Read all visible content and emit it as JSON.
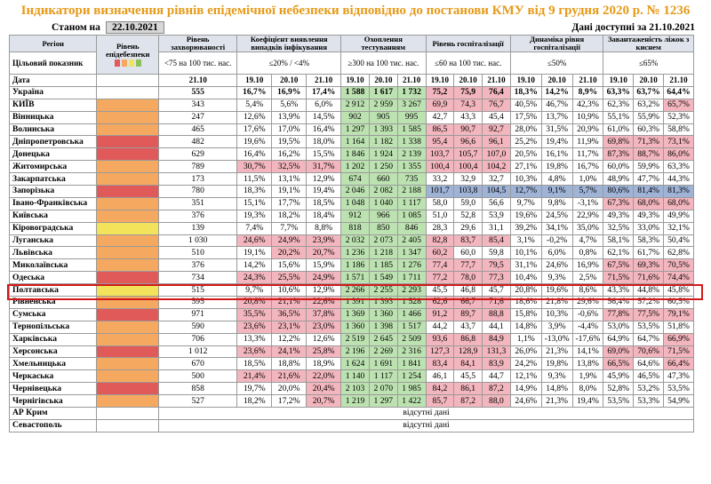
{
  "title": "Індикатори визначення рівнів епідемічної небезпеки відповідно до постанови КМУ від 9 грудня 2020 р. № 1236",
  "as_of_label": "Станом на",
  "as_of_date": "22.10.2021",
  "data_available": "Дані доступні за 21.10.2021",
  "headers": {
    "region": "Регіон",
    "level": "Рівень епідебезпеки",
    "incidence": "Рівень захворюваності",
    "detection": "Коефіцієнт виявлення випадків інфікування",
    "testing": "Охоплення тестуванням",
    "hosp": "Рівень госпіталізації",
    "dynamics": "Динаміка рівня госпіталізації",
    "beds": "Завантаженість ліжок з киснем"
  },
  "thresholds": {
    "target": "Цільовий показник",
    "incidence": "<75 на 100 тис. нас.",
    "detection": "≤20% / <4%",
    "testing": "≥300 на 100 тис. нас.",
    "hosp": "≤60 на 100 тис. нас.",
    "dynamics": "≤50%",
    "beds": "≤65%"
  },
  "dates": {
    "label": "Дата",
    "incidence": "21.10",
    "d1": "19.10",
    "d2": "20.10",
    "d3": "21.10"
  },
  "colors": {
    "red": "#e05a5a",
    "orange": "#f5a960",
    "yellow": "#f2e35a",
    "green": "#8cc05a",
    "pink": "#f3b6be",
    "lightgreen": "#bde2b1",
    "blue": "#9fb3d6",
    "title": "#e69a18",
    "highlight": "#d21a1a"
  },
  "no_data_text": "відсутні дані",
  "rows": [
    {
      "region": "Україна",
      "level": "",
      "inc": "555",
      "det": [
        "16,7%",
        "16,9%",
        "17,4%"
      ],
      "test": [
        "1 588",
        "1 617",
        "1 732"
      ],
      "hosp": [
        "75,2",
        "75,9",
        "76,4"
      ],
      "dyn": [
        "18,3%",
        "14,2%",
        "8,9%"
      ],
      "beds": [
        "63,3%",
        "63,7%",
        "64,4%"
      ]
    },
    {
      "region": "КИЇВ",
      "level": "orange",
      "inc": "343",
      "det": [
        "5,4%",
        "5,6%",
        "6,0%"
      ],
      "test": [
        "2 912",
        "2 959",
        "3 267"
      ],
      "hosp": [
        "69,9",
        "74,3",
        "76,7"
      ],
      "dyn": [
        "40,5%",
        "46,7%",
        "42,3%"
      ],
      "beds": [
        "62,3%",
        "63,2%",
        "65,7%"
      ]
    },
    {
      "region": "Вінницька",
      "level": "orange",
      "inc": "247",
      "det": [
        "12,6%",
        "13,9%",
        "14,5%"
      ],
      "test": [
        "902",
        "905",
        "995"
      ],
      "hosp": [
        "42,7",
        "43,3",
        "45,4"
      ],
      "dyn": [
        "17,5%",
        "13,7%",
        "10,9%"
      ],
      "beds": [
        "55,1%",
        "55,9%",
        "52,3%"
      ]
    },
    {
      "region": "Волинська",
      "level": "orange",
      "inc": "465",
      "det": [
        "17,6%",
        "17,0%",
        "16,4%"
      ],
      "test": [
        "1 297",
        "1 393",
        "1 585"
      ],
      "hosp": [
        "86,5",
        "90,7",
        "92,7"
      ],
      "dyn": [
        "28,0%",
        "31,5%",
        "20,9%"
      ],
      "beds": [
        "61,0%",
        "60,3%",
        "58,8%"
      ]
    },
    {
      "region": "Дніпропетровська",
      "level": "red",
      "inc": "482",
      "det": [
        "19,6%",
        "19,5%",
        "18,0%"
      ],
      "test": [
        "1 164",
        "1 182",
        "1 338"
      ],
      "hosp": [
        "95,4",
        "96,6",
        "96,1"
      ],
      "dyn": [
        "25,2%",
        "19,4%",
        "11,9%"
      ],
      "beds": [
        "69,8%",
        "71,3%",
        "73,1%"
      ]
    },
    {
      "region": "Донецька",
      "level": "red",
      "inc": "629",
      "det": [
        "16,4%",
        "16,2%",
        "15,5%"
      ],
      "test": [
        "1 846",
        "1 924",
        "2 139"
      ],
      "hosp": [
        "103,7",
        "105,7",
        "107,0"
      ],
      "dyn": [
        "20,5%",
        "16,1%",
        "11,7%"
      ],
      "beds": [
        "87,3%",
        "88,7%",
        "86,0%"
      ]
    },
    {
      "region": "Житомирська",
      "level": "orange",
      "inc": "789",
      "det": [
        "30,7%",
        "32,5%",
        "31,7%"
      ],
      "test": [
        "1 202",
        "1 250",
        "1 355"
      ],
      "hosp": [
        "100,4",
        "100,4",
        "104,2"
      ],
      "dyn": [
        "27,1%",
        "19,8%",
        "16,7%"
      ],
      "beds": [
        "60,0%",
        "59,9%",
        "63,3%"
      ]
    },
    {
      "region": "Закарпатська",
      "level": "orange",
      "inc": "173",
      "det": [
        "11,5%",
        "13,1%",
        "12,9%"
      ],
      "test": [
        "674",
        "660",
        "735"
      ],
      "hosp": [
        "33,2",
        "32,9",
        "32,7"
      ],
      "dyn": [
        "10,3%",
        "4,8%",
        "1,0%"
      ],
      "beds": [
        "48,9%",
        "47,7%",
        "44,3%"
      ]
    },
    {
      "region": "Запорізька",
      "level": "red",
      "inc": "780",
      "det": [
        "18,3%",
        "19,1%",
        "19,4%"
      ],
      "test": [
        "2 046",
        "2 082",
        "2 188"
      ],
      "hosp": [
        "101,7",
        "103,8",
        "104,5"
      ],
      "dyn": [
        "12,7%",
        "9,1%",
        "5,7%"
      ],
      "beds": [
        "80,6%",
        "81,4%",
        "81,3%"
      ]
    },
    {
      "region": "Івано-Франківська",
      "level": "orange",
      "inc": "351",
      "det": [
        "15,1%",
        "17,7%",
        "18,5%"
      ],
      "test": [
        "1 048",
        "1 040",
        "1 117"
      ],
      "hosp": [
        "58,0",
        "59,0",
        "56,6"
      ],
      "dyn": [
        "9,7%",
        "9,8%",
        "-3,1%"
      ],
      "beds": [
        "67,3%",
        "68,0%",
        "68,0%"
      ]
    },
    {
      "region": "Київська",
      "level": "orange",
      "inc": "376",
      "det": [
        "19,3%",
        "18,2%",
        "18,4%"
      ],
      "test": [
        "912",
        "966",
        "1 085"
      ],
      "hosp": [
        "51,0",
        "52,8",
        "53,9"
      ],
      "dyn": [
        "19,6%",
        "24,5%",
        "22,9%"
      ],
      "beds": [
        "49,3%",
        "49,3%",
        "49,9%"
      ]
    },
    {
      "region": "Кіровоградська",
      "level": "yellow",
      "inc": "139",
      "det": [
        "7,4%",
        "7,7%",
        "8,8%"
      ],
      "test": [
        "818",
        "850",
        "846"
      ],
      "hosp": [
        "28,3",
        "29,6",
        "31,1"
      ],
      "dyn": [
        "39,2%",
        "34,1%",
        "35,0%"
      ],
      "beds": [
        "32,5%",
        "33,0%",
        "32,1%"
      ]
    },
    {
      "region": "Луганська",
      "level": "orange",
      "inc": "1 030",
      "det": [
        "24,6%",
        "24,9%",
        "23,9%"
      ],
      "test": [
        "2 032",
        "2 073",
        "2 405"
      ],
      "hosp": [
        "82,8",
        "83,7",
        "85,4"
      ],
      "dyn": [
        "3,1%",
        "-0,2%",
        "4,7%"
      ],
      "beds": [
        "58,1%",
        "58,3%",
        "50,4%"
      ]
    },
    {
      "region": "Львівська",
      "level": "orange",
      "inc": "510",
      "det": [
        "19,1%",
        "20,2%",
        "20,7%"
      ],
      "test": [
        "1 236",
        "1 218",
        "1 347"
      ],
      "hosp": [
        "60,2",
        "60,0",
        "59,8"
      ],
      "dyn": [
        "10,1%",
        "6,0%",
        "0,8%"
      ],
      "beds": [
        "62,1%",
        "61,7%",
        "62,8%"
      ]
    },
    {
      "region": "Миколаївська",
      "level": "orange",
      "inc": "376",
      "det": [
        "14,2%",
        "15,6%",
        "15,9%"
      ],
      "test": [
        "1 186",
        "1 185",
        "1 276"
      ],
      "hosp": [
        "77,4",
        "77,7",
        "79,5"
      ],
      "dyn": [
        "31,1%",
        "24,6%",
        "16,9%"
      ],
      "beds": [
        "67,5%",
        "69,3%",
        "70,5%"
      ]
    },
    {
      "region": "Одеська",
      "level": "red",
      "inc": "734",
      "det": [
        "24,3%",
        "25,5%",
        "24,9%"
      ],
      "test": [
        "1 571",
        "1 549",
        "1 711"
      ],
      "hosp": [
        "77,2",
        "78,0",
        "77,3"
      ],
      "dyn": [
        "10,4%",
        "9,3%",
        "2,5%"
      ],
      "beds": [
        "71,5%",
        "71,6%",
        "74,4%"
      ]
    },
    {
      "region": "Полтавська",
      "level": "yellow",
      "inc": "515",
      "det": [
        "9,7%",
        "10,6%",
        "12,9%"
      ],
      "test": [
        "2 266",
        "2 255",
        "2 293"
      ],
      "hosp": [
        "45,5",
        "46,8",
        "45,7"
      ],
      "dyn": [
        "20,8%",
        "19,6%",
        "8,6%"
      ],
      "beds": [
        "43,3%",
        "44,8%",
        "45,8%"
      ]
    },
    {
      "region": "Рівненська",
      "level": "orange",
      "inc": "595",
      "det": [
        "20,8%",
        "21,1%",
        "22,6%"
      ],
      "test": [
        "1 391",
        "1 393",
        "1 528"
      ],
      "hosp": [
        "62,6",
        "66,7",
        "71,6"
      ],
      "dyn": [
        "18,6%",
        "21,8%",
        "29,6%"
      ],
      "beds": [
        "56,4%",
        "57,2%",
        "60,5%"
      ]
    },
    {
      "region": "Сумська",
      "level": "red",
      "inc": "971",
      "det": [
        "35,5%",
        "36,5%",
        "37,8%"
      ],
      "test": [
        "1 369",
        "1 360",
        "1 466"
      ],
      "hosp": [
        "91,2",
        "89,7",
        "88,8"
      ],
      "dyn": [
        "15,8%",
        "10,3%",
        "-0,6%"
      ],
      "beds": [
        "77,8%",
        "77,5%",
        "79,1%"
      ]
    },
    {
      "region": "Тернопільська",
      "level": "orange",
      "inc": "590",
      "det": [
        "23,6%",
        "23,1%",
        "23,0%"
      ],
      "test": [
        "1 360",
        "1 398",
        "1 517"
      ],
      "hosp": [
        "44,2",
        "43,7",
        "44,1"
      ],
      "dyn": [
        "14,8%",
        "3,9%",
        "-4,4%"
      ],
      "beds": [
        "53,0%",
        "53,5%",
        "51,8%"
      ]
    },
    {
      "region": "Харківська",
      "level": "orange",
      "inc": "706",
      "det": [
        "13,3%",
        "12,2%",
        "12,6%"
      ],
      "test": [
        "2 519",
        "2 645",
        "2 509"
      ],
      "hosp": [
        "93,6",
        "86,8",
        "84,9"
      ],
      "dyn": [
        "1,1%",
        "-13,0%",
        "-17,6%"
      ],
      "beds": [
        "64,9%",
        "64,7%",
        "66,9%"
      ]
    },
    {
      "region": "Херсонська",
      "level": "red",
      "inc": "1 012",
      "det": [
        "23,6%",
        "24,1%",
        "25,8%"
      ],
      "test": [
        "2 196",
        "2 269",
        "2 316"
      ],
      "hosp": [
        "127,3",
        "128,9",
        "131,3"
      ],
      "dyn": [
        "26,0%",
        "21,3%",
        "14,1%"
      ],
      "beds": [
        "69,0%",
        "70,6%",
        "71,5%"
      ]
    },
    {
      "region": "Хмельницька",
      "level": "orange",
      "inc": "670",
      "det": [
        "18,5%",
        "18,8%",
        "18,9%"
      ],
      "test": [
        "1 624",
        "1 691",
        "1 841"
      ],
      "hosp": [
        "83,4",
        "84,1",
        "83,9"
      ],
      "dyn": [
        "24,2%",
        "19,8%",
        "13,8%"
      ],
      "beds": [
        "66,5%",
        "64,6%",
        "66,4%"
      ]
    },
    {
      "region": "Черкаська",
      "level": "orange",
      "inc": "500",
      "det": [
        "21,4%",
        "21,6%",
        "22,0%"
      ],
      "test": [
        "1 140",
        "1 117",
        "1 254"
      ],
      "hosp": [
        "46,1",
        "45,5",
        "44,7"
      ],
      "dyn": [
        "12,1%",
        "9,3%",
        "1,9%"
      ],
      "beds": [
        "45,9%",
        "46,5%",
        "47,3%"
      ]
    },
    {
      "region": "Чернівецька",
      "level": "red",
      "inc": "858",
      "det": [
        "19,7%",
        "20,0%",
        "20,4%"
      ],
      "test": [
        "2 103",
        "2 070",
        "1 985"
      ],
      "hosp": [
        "84,2",
        "86,1",
        "87,2"
      ],
      "dyn": [
        "14,9%",
        "14,8%",
        "8,0%"
      ],
      "beds": [
        "52,8%",
        "53,2%",
        "53,5%"
      ]
    },
    {
      "region": "Чернігівська",
      "level": "orange",
      "inc": "527",
      "det": [
        "18,2%",
        "17,2%",
        "20,7%"
      ],
      "test": [
        "1 219",
        "1 297",
        "1 422"
      ],
      "hosp": [
        "85,7",
        "87,2",
        "88,0"
      ],
      "dyn": [
        "24,6%",
        "21,3%",
        "19,4%"
      ],
      "beds": [
        "53,5%",
        "53,3%",
        "54,9%"
      ]
    }
  ],
  "extra_rows": [
    {
      "region": "АР Крим"
    },
    {
      "region": "Севастополь"
    }
  ]
}
